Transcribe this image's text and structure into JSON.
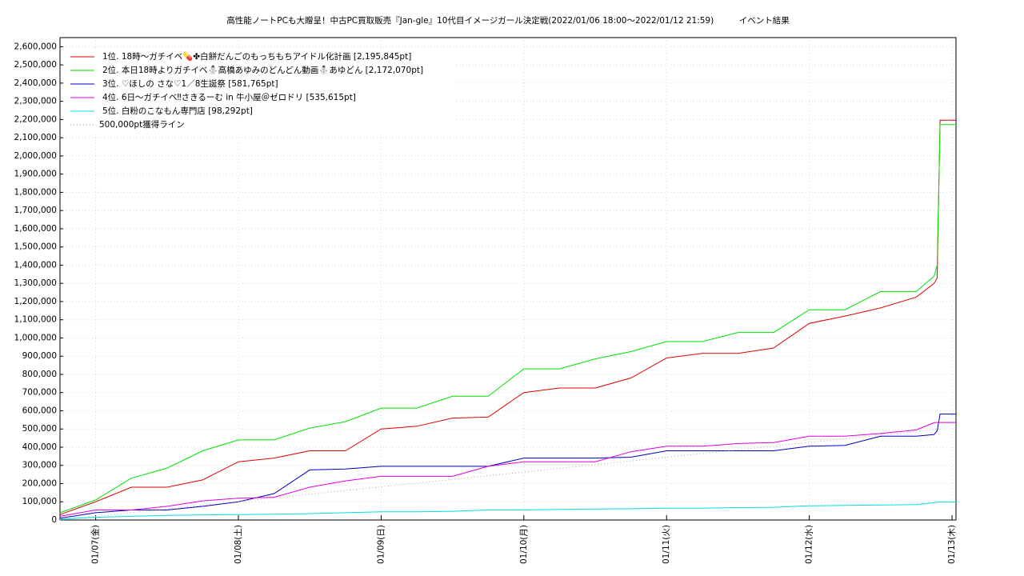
{
  "chart_data": {
    "type": "line",
    "title": "高性能ノートPCも大贈呈！中古PC買取販売『Jan-gle』10代目イメージガール決定戦(2022/01/06 18:00～2022/01/12 21:59)　　　イベント結果",
    "x": [
      "2022/01/06 18:00",
      "2022/01/07 00:00",
      "2022/01/07 06:00",
      "2022/01/07 12:00",
      "2022/01/07 18:00",
      "2022/01/08 00:00",
      "2022/01/08 06:00",
      "2022/01/08 12:00",
      "2022/01/08 18:00",
      "2022/01/09 00:00",
      "2022/01/09 06:00",
      "2022/01/09 12:00",
      "2022/01/09 18:00",
      "2022/01/10 00:00",
      "2022/01/10 06:00",
      "2022/01/10 12:00",
      "2022/01/10 18:00",
      "2022/01/11 00:00",
      "2022/01/11 06:00",
      "2022/01/11 12:00",
      "2022/01/11 18:00",
      "2022/01/12 00:00",
      "2022/01/12 06:00",
      "2022/01/12 12:00",
      "2022/01/12 18:00",
      "2022/01/12 21:00",
      "2022/01/12 21:30",
      "2022/01/12 21:59",
      "2022/01/13 00:40"
    ],
    "series": [
      {
        "name": "1位. 18時～ガチイベ💊✤白餅だんごのもっちもちアイドル化計画 [2,195,845pt]",
        "color": "#e00000",
        "values": [
          30000,
          100000,
          180000,
          180000,
          220000,
          320000,
          340000,
          380000,
          380000,
          500000,
          515000,
          560000,
          565000,
          700000,
          725000,
          725000,
          780000,
          890000,
          915000,
          915000,
          945000,
          1080000,
          1120000,
          1165000,
          1225000,
          1300000,
          1330000,
          2195845,
          2195845
        ]
      },
      {
        "name": "2位. 本日18時よりガチイベ⛄高橋あゆみのどんどん動画⛄あゆどん [2,172,070pt]",
        "color": "#00e000",
        "values": [
          40000,
          110000,
          230000,
          285000,
          380000,
          440000,
          440000,
          505000,
          540000,
          615000,
          615000,
          680000,
          680000,
          830000,
          830000,
          885000,
          925000,
          980000,
          980000,
          1030000,
          1030000,
          1155000,
          1155000,
          1255000,
          1255000,
          1340000,
          1400000,
          2172070,
          2172070
        ]
      },
      {
        "name": "3位. ♡ほしの さな♡1／8生誕祭 [581,765pt]",
        "color": "#0000c0",
        "values": [
          10000,
          40000,
          55000,
          55000,
          75000,
          100000,
          145000,
          275000,
          280000,
          295000,
          295000,
          295000,
          295000,
          340000,
          340000,
          340000,
          345000,
          380000,
          380000,
          380000,
          380000,
          405000,
          410000,
          460000,
          460000,
          470000,
          490000,
          581765,
          581765
        ]
      },
      {
        "name": "4位. 6日～ガチイベ‼さきるーむ in 牛小屋＠ゼロドリ [535,615pt]",
        "color": "#e000e0",
        "values": [
          20000,
          55000,
          55000,
          75000,
          105000,
          120000,
          125000,
          180000,
          215000,
          240000,
          240000,
          240000,
          295000,
          320000,
          320000,
          320000,
          375000,
          405000,
          405000,
          420000,
          425000,
          460000,
          460000,
          475000,
          495000,
          535000,
          535615,
          535615,
          535615
        ]
      },
      {
        "name": "5位. 白粉のこなもん専門店 [98,292pt]",
        "color": "#00e0e0",
        "values": [
          5000,
          15000,
          20000,
          25000,
          28000,
          30000,
          32000,
          35000,
          40000,
          45000,
          45000,
          48000,
          55000,
          55000,
          58000,
          60000,
          62000,
          65000,
          65000,
          68000,
          70000,
          78000,
          80000,
          82000,
          85000,
          95000,
          98000,
          98292,
          98292
        ]
      },
      {
        "name": "500,000pt獲得ライン",
        "color": "#c0a0a0",
        "dotted": true,
        "x": [
          "2022/01/06 18:00",
          "2022/01/12 21:59"
        ],
        "values": [
          0,
          500000
        ]
      }
    ],
    "xlim": [
      "2022/01/06 18:00",
      "2022/01/13 00:40"
    ],
    "xticks": [
      {
        "value": "2022/01/07 00:00",
        "label": "01/07(金)"
      },
      {
        "value": "2022/01/08 00:00",
        "label": "01/08(土)"
      },
      {
        "value": "2022/01/09 00:00",
        "label": "01/09(日)"
      },
      {
        "value": "2022/01/10 00:00",
        "label": "01/10(月)"
      },
      {
        "value": "2022/01/11 00:00",
        "label": "01/11(火)"
      },
      {
        "value": "2022/01/12 00:00",
        "label": "01/12(水)"
      },
      {
        "value": "2022/01/13 00:00",
        "label": "01/13(木)"
      }
    ],
    "ylim": [
      0,
      2650000
    ],
    "yticks": [
      0,
      {
        "value": 100000,
        "label": "100,000"
      },
      {
        "value": 200000,
        "label": "200,000"
      },
      {
        "value": 300000,
        "label": "300,000"
      },
      {
        "value": 400000,
        "label": "400,000"
      },
      {
        "value": 500000,
        "label": "500,000"
      },
      {
        "value": 600000,
        "label": "600,000"
      },
      {
        "value": 700000,
        "label": "700,000"
      },
      {
        "value": 800000,
        "label": "800,000"
      },
      {
        "value": 900000,
        "label": "900,000"
      },
      {
        "value": 1000000,
        "label": "1,000,000"
      },
      {
        "value": 1100000,
        "label": "1,100,000"
      },
      {
        "value": 1200000,
        "label": "1,200,000"
      },
      {
        "value": 1300000,
        "label": "1,300,000"
      },
      {
        "value": 1400000,
        "label": "1,400,000"
      },
      {
        "value": 1500000,
        "label": "1,500,000"
      },
      {
        "value": 1600000,
        "label": "1,600,000"
      },
      {
        "value": 1700000,
        "label": "1,700,000"
      },
      {
        "value": 1800000,
        "label": "1,800,000"
      },
      {
        "value": 1900000,
        "label": "1,900,000"
      },
      {
        "value": 2000000,
        "label": "2,000,000"
      },
      {
        "value": 2100000,
        "label": "2,100,000"
      },
      {
        "value": 2200000,
        "label": "2,200,000"
      },
      {
        "value": 2300000,
        "label": "2,300,000"
      },
      {
        "value": 2400000,
        "label": "2,400,000"
      },
      {
        "value": 2500000,
        "label": "2,500,000"
      },
      {
        "value": 2600000,
        "label": "2,600,000"
      }
    ],
    "grid": true,
    "legend": "top-left"
  }
}
